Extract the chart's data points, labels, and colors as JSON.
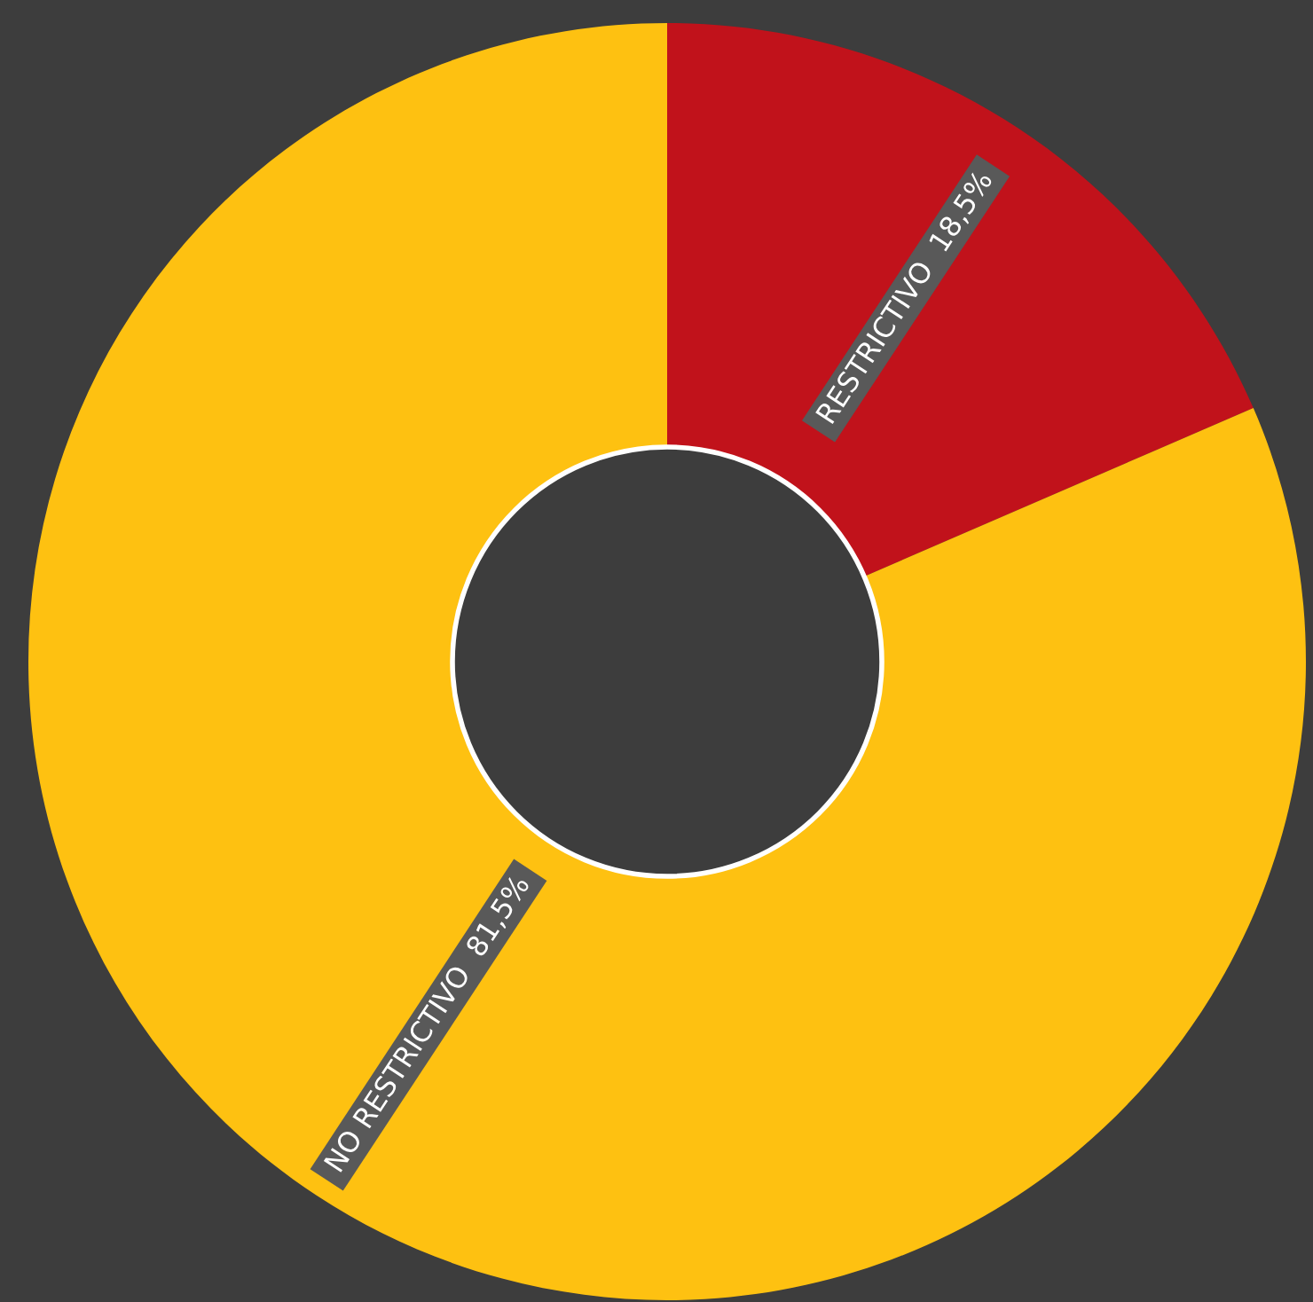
{
  "chart_data": {
    "type": "donut",
    "categories": [
      "RESTRICTIVO",
      "NO RESTRICTIVO"
    ],
    "values": [
      18.5,
      81.5
    ],
    "colors": [
      "#c1121b",
      "#fec111"
    ],
    "value_labels": [
      "18,5%",
      "81,5%"
    ]
  }
}
